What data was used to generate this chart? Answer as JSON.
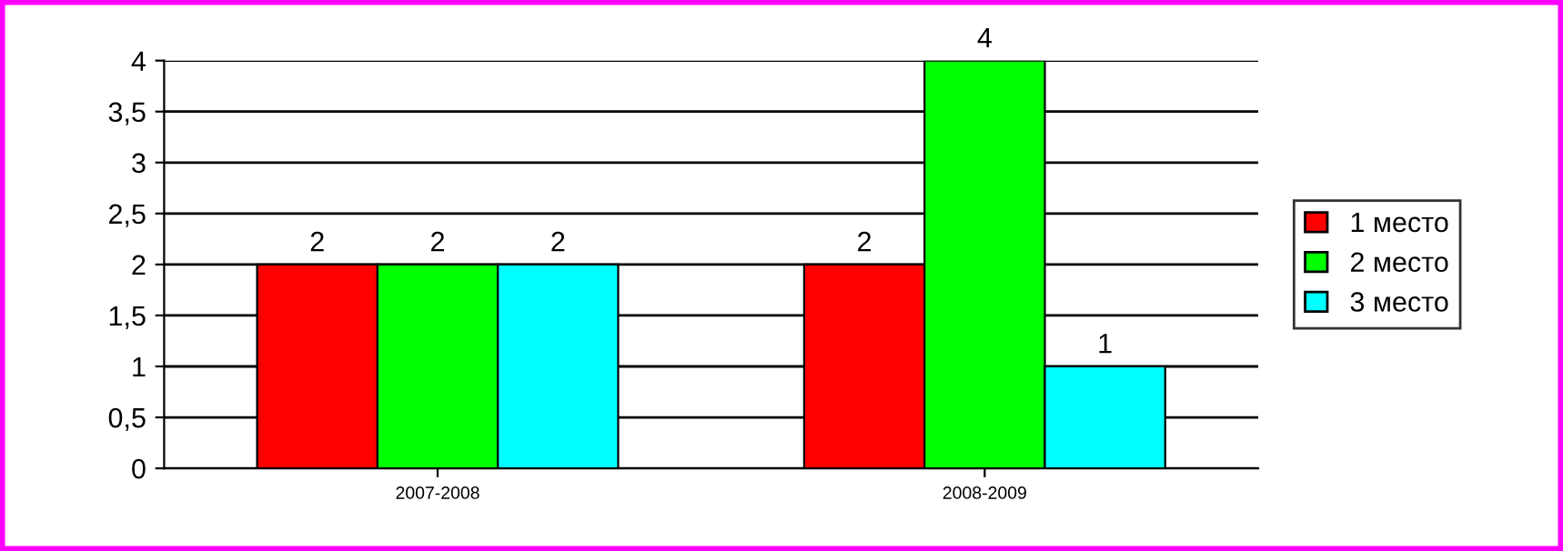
{
  "chart_data": {
    "type": "bar",
    "categories": [
      "2007-2008",
      "2008-2009"
    ],
    "series": [
      {
        "name": "1 место",
        "color": "#ff0000",
        "values": [
          2,
          2
        ]
      },
      {
        "name": "2 место",
        "color": "#00ff00",
        "values": [
          2,
          4
        ]
      },
      {
        "name": "3 место",
        "color": "#00ffff",
        "values": [
          2,
          1
        ]
      }
    ],
    "ylim": [
      0,
      4
    ],
    "yticks": [
      0,
      {
        "value": 0.5,
        "label": "0,5"
      },
      1,
      {
        "value": 1.5,
        "label": "1,5"
      },
      2,
      {
        "value": 2.5,
        "label": "2,5"
      },
      3,
      {
        "value": 3.5,
        "label": "3,5"
      },
      4
    ],
    "grid": "y",
    "legend": "right",
    "data_labels": true
  }
}
